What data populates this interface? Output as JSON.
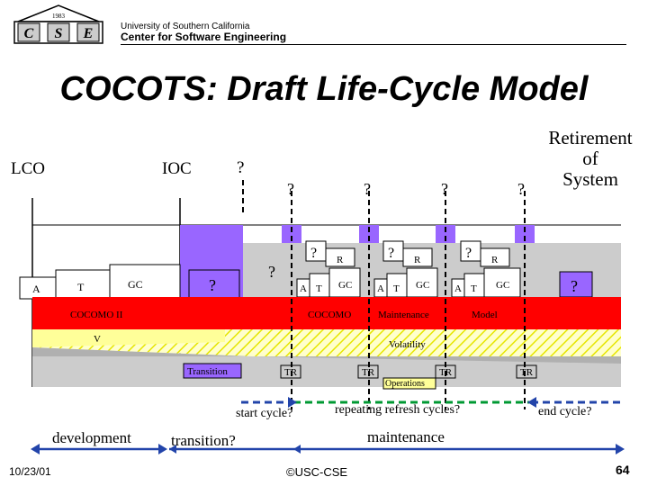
{
  "header": {
    "logo_letters": [
      "C",
      "S",
      "E"
    ],
    "logo_year": "1983",
    "university": "University of Southern California",
    "center": "Center for Software Engineering"
  },
  "title": "COCOTS: Draft Life-Cycle Model",
  "milestones": {
    "lco": "LCO",
    "ioc": "IOC",
    "ioc_question": "?",
    "cycle_questions": [
      "?",
      "?",
      "?",
      "?"
    ],
    "retirement": [
      "Retirement",
      "of",
      "System"
    ]
  },
  "diagram": {
    "dev_boxes": [
      "A",
      "T",
      "GC"
    ],
    "transition_question": "?",
    "cycle_pre_question": "?",
    "cycle_box_question": "?",
    "cycle_boxes": [
      "R",
      "A",
      "T",
      "GC"
    ],
    "end_question": "?",
    "cocomo_ii": "COCOMO II",
    "cocomo": "COCOMO",
    "maintenance": "Maintenance",
    "model": "Model",
    "v": "V",
    "volatility": "Volatility",
    "transition": "Transition",
    "tr": "TR",
    "operations": "Operations"
  },
  "annotations": {
    "start_cycle": "start cycle?",
    "repeating": "repeating refresh cycles?",
    "end_cycle": "end cycle?",
    "development": "development",
    "transition_q": "transition?",
    "maintenance": "maintenance"
  },
  "footer": {
    "date": "10/23/01",
    "copyright": "©USC-CSE",
    "page": "64"
  },
  "colors": {
    "purple": "#9966ff",
    "red": "#ff0000",
    "yellow": "#ffff99",
    "grey": "#cccccc",
    "blue": "#2244aa",
    "green": "#009933",
    "hatch": "#ffffcc"
  }
}
